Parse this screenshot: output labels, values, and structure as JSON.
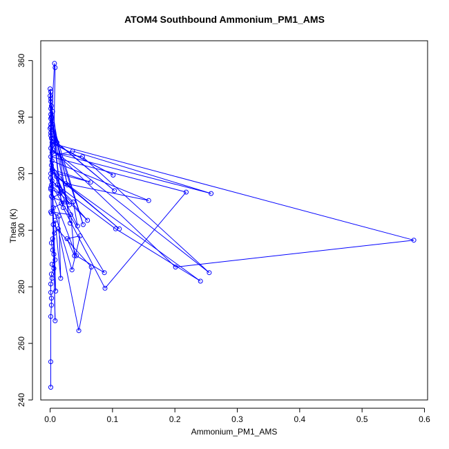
{
  "chart_data": {
    "type": "scatter",
    "mode": "lines+markers",
    "title": "ATOM4 Southbound Ammonium_PM1_AMS",
    "xlabel": "Ammonium_PM1_AMS",
    "ylabel": "Theta (K)",
    "xlim": [
      -0.015,
      0.605
    ],
    "ylim": [
      240,
      367
    ],
    "x_ticks": [
      0.0,
      0.1,
      0.2,
      0.3,
      0.4,
      0.5,
      0.6
    ],
    "x_tick_labels": [
      "0.0",
      "0.1",
      "0.2",
      "0.3",
      "0.4",
      "0.5",
      "0.6"
    ],
    "y_ticks": [
      240,
      260,
      280,
      300,
      320,
      340,
      360
    ],
    "y_tick_labels": [
      "240",
      "260",
      "280",
      "300",
      "320",
      "340",
      "360"
    ],
    "grid": false,
    "color": "#0000ff",
    "series": [
      {
        "x": [
          0.001,
          0.001,
          0.001,
          0.002,
          0.002,
          0.001,
          0.001,
          0.003,
          0.002,
          0.006,
          0.003,
          0.008,
          0.006,
          0.004,
          0.002,
          0.004,
          0.007,
          0.013,
          0.046,
          0.066,
          0.005,
          0.008,
          0.017,
          0.014,
          0.001,
          0.033,
          0.039,
          0.027,
          0.048,
          0.035,
          0.005,
          0.024,
          0.004,
          0.016,
          0.001,
          0.042,
          0.087,
          0.002,
          0.06,
          0.003,
          0.037,
          0.044,
          0.011,
          0.105,
          0.241,
          0.01,
          0.111,
          0.004,
          0.065,
          0.003,
          0.031,
          0.002,
          0.025,
          0.158,
          0.003,
          0.021,
          0.088,
          0.218,
          0.001,
          0.036,
          0.258,
          0.003,
          0.052,
          0.255,
          0.001,
          0.201,
          0.583,
          0.006,
          0.101,
          0.003,
          0.011,
          0.103,
          0.002,
          0.001,
          0.006,
          0.008,
          0.007,
          0.001,
          0.009,
          0.0,
          0.004,
          0.001,
          0.053,
          0.003,
          0.001,
          0.028,
          0.002,
          0.001,
          0.032,
          0.004,
          0.001,
          0.018,
          0.002,
          0.001,
          0.001,
          0.0,
          0.001,
          0.003,
          0.008,
          0.001,
          0.0,
          0.001,
          0.002,
          0.001,
          0.002,
          0.001
        ],
        "y": [
          244.5,
          253.5,
          269.5,
          273.5,
          276.0,
          278.0,
          281.0,
          283.0,
          284.5,
          286.5,
          288.0,
          289.5,
          291.5,
          293.0,
          295.5,
          297.0,
          299.0,
          300.5,
          264.5,
          287.0,
          302.0,
          303.5,
          283.0,
          305.0,
          306.5,
          305.5,
          291.0,
          297.0,
          298.0,
          286.0,
          308.0,
          310.0,
          311.5,
          313.0,
          314.5,
          291.0,
          285.0,
          316.0,
          303.5,
          317.5,
          310.0,
          301.5,
          316.0,
          300.5,
          282.0,
          319.0,
          300.5,
          320.5,
          317.0,
          321.5,
          309.0,
          323.0,
          316.5,
          310.5,
          324.5,
          308.0,
          279.5,
          313.5,
          326.0,
          328.0,
          313.0,
          327.5,
          326.0,
          285.0,
          329.0,
          287.0,
          296.5,
          330.5,
          319.5,
          331.0,
          331.0,
          314.0,
          332.5,
          333.5,
          332.5,
          357.5,
          359.0,
          334.5,
          278.5,
          336.0,
          328.5,
          337.5,
          302.0,
          338.5,
          339.5,
          316.0,
          340.0,
          341.0,
          302.5,
          342.0,
          343.0,
          309.5,
          344.0,
          345.5,
          346.5,
          347.5,
          349.0,
          330.0,
          268.0,
          336.5,
          350.0,
          320.0,
          312.0,
          318.5,
          306.0,
          315.0
        ]
      }
    ]
  }
}
